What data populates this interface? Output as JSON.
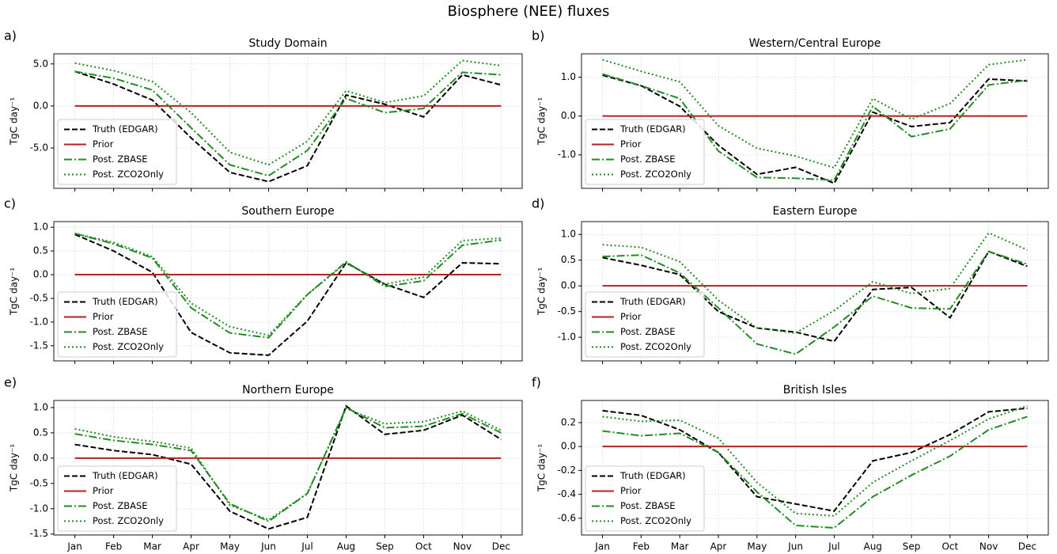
{
  "title": "Biosphere (NEE) fluxes",
  "chart_data": [
    {
      "type": "line",
      "label": "a)",
      "title": "Study Domain",
      "ylabel": "TgC day⁻¹",
      "categories": [
        "Jan",
        "Feb",
        "Mar",
        "Apr",
        "May",
        "Jun",
        "Jul",
        "Aug",
        "Sep",
        "Oct",
        "Nov",
        "Dec"
      ],
      "ylim": [
        -9.8,
        6.2
      ],
      "yticks": [
        {
          "value": -5,
          "label": "-5.0"
        },
        {
          "value": 0,
          "label": "0.0"
        },
        {
          "value": 5,
          "label": "5.0"
        }
      ],
      "grid": true,
      "legend": "lower left",
      "series": [
        {
          "name": "Truth (EDGAR)",
          "color": "#000000",
          "linestyle": "dashed",
          "values": [
            4.1,
            2.6,
            0.7,
            -3.8,
            -7.9,
            -9.0,
            -7.1,
            1.3,
            0.2,
            -1.3,
            3.7,
            2.5
          ]
        },
        {
          "name": "Prior",
          "color": "#b22222",
          "linestyle": "solid",
          "values": [
            0,
            0,
            0,
            0,
            0,
            0,
            0,
            0,
            0,
            0,
            0,
            0
          ]
        },
        {
          "name": "Post. ZBASE",
          "color": "#228b22",
          "linestyle": "dashdot",
          "values": [
            4.1,
            3.3,
            1.9,
            -2.6,
            -7.0,
            -8.3,
            -5.3,
            0.9,
            -0.8,
            -0.3,
            4.0,
            3.7
          ]
        },
        {
          "name": "Post. ZCO2Only",
          "color": "#228b22",
          "linestyle": "dotted",
          "values": [
            5.1,
            4.2,
            2.9,
            -0.8,
            -5.5,
            -7.0,
            -4.2,
            1.8,
            0.4,
            1.2,
            5.4,
            4.8
          ]
        }
      ]
    },
    {
      "type": "line",
      "label": "b)",
      "title": "Western/Central Europe",
      "ylabel": "TgC day⁻¹",
      "categories": [
        "Jan",
        "Feb",
        "Mar",
        "Apr",
        "May",
        "Jun",
        "Jul",
        "Aug",
        "Sep",
        "Oct",
        "Nov",
        "Dec"
      ],
      "ylim": [
        -1.86,
        1.6
      ],
      "yticks": [
        {
          "value": -1,
          "label": "-1.0"
        },
        {
          "value": 0,
          "label": "0.0"
        },
        {
          "value": 1,
          "label": "1.0"
        }
      ],
      "grid": true,
      "legend": "lower left",
      "series": [
        {
          "name": "Truth (EDGAR)",
          "color": "#000000",
          "linestyle": "dashed",
          "values": [
            1.05,
            0.78,
            0.25,
            -0.75,
            -1.5,
            -1.32,
            -1.73,
            0.1,
            -0.27,
            -0.17,
            0.95,
            0.9
          ]
        },
        {
          "name": "Prior",
          "color": "#b22222",
          "linestyle": "solid",
          "values": [
            0,
            0,
            0,
            0,
            0,
            0,
            0,
            0,
            0,
            0,
            0,
            0
          ]
        },
        {
          "name": "Post. ZBASE",
          "color": "#228b22",
          "linestyle": "dashdot",
          "values": [
            1.08,
            0.78,
            0.45,
            -0.9,
            -1.58,
            -1.6,
            -1.65,
            0.25,
            -0.53,
            -0.33,
            0.8,
            0.92
          ]
        },
        {
          "name": "Post. ZCO2Only",
          "color": "#228b22",
          "linestyle": "dotted",
          "values": [
            1.45,
            1.15,
            0.88,
            -0.25,
            -0.83,
            -1.03,
            -1.33,
            0.45,
            -0.08,
            0.32,
            1.32,
            1.45
          ]
        }
      ]
    },
    {
      "type": "line",
      "label": "c)",
      "title": "Southern Europe",
      "ylabel": "TgC day⁻¹",
      "categories": [
        "Jan",
        "Feb",
        "Mar",
        "Apr",
        "May",
        "Jun",
        "Jul",
        "Aug",
        "Sep",
        "Oct",
        "Nov",
        "Dec"
      ],
      "ylim": [
        -1.82,
        1.12
      ],
      "yticks": [
        {
          "value": -1.5,
          "label": "-1.5"
        },
        {
          "value": -1,
          "label": "-1.0"
        },
        {
          "value": -0.5,
          "label": "-0.5"
        },
        {
          "value": 0,
          "label": "0.0"
        },
        {
          "value": 0.5,
          "label": "0.5"
        },
        {
          "value": 1,
          "label": "1.0"
        }
      ],
      "grid": true,
      "legend": "lower left",
      "series": [
        {
          "name": "Truth (EDGAR)",
          "color": "#000000",
          "linestyle": "dashed",
          "values": [
            0.85,
            0.5,
            0.05,
            -1.22,
            -1.65,
            -1.7,
            -0.98,
            0.25,
            -0.2,
            -0.48,
            0.25,
            0.23
          ]
        },
        {
          "name": "Prior",
          "color": "#b22222",
          "linestyle": "solid",
          "values": [
            0,
            0,
            0,
            0,
            0,
            0,
            0,
            0,
            0,
            0,
            0,
            0
          ]
        },
        {
          "name": "Post. ZBASE",
          "color": "#228b22",
          "linestyle": "dashdot",
          "values": [
            0.87,
            0.65,
            0.35,
            -0.7,
            -1.23,
            -1.33,
            -0.42,
            0.27,
            -0.25,
            -0.13,
            0.62,
            0.73
          ]
        },
        {
          "name": "Post. ZCO2Only",
          "color": "#228b22",
          "linestyle": "dotted",
          "values": [
            0.87,
            0.68,
            0.38,
            -0.6,
            -1.1,
            -1.28,
            -0.42,
            0.25,
            -0.2,
            -0.05,
            0.72,
            0.77
          ]
        }
      ]
    },
    {
      "type": "line",
      "label": "d)",
      "title": "Eastern Europe",
      "ylabel": "TgC day⁻¹",
      "categories": [
        "Jan",
        "Feb",
        "Mar",
        "Apr",
        "May",
        "Jun",
        "Jul",
        "Aug",
        "Sep",
        "Oct",
        "Nov",
        "Dec"
      ],
      "ylim": [
        -1.46,
        1.25
      ],
      "yticks": [
        {
          "value": -1,
          "label": "-1.0"
        },
        {
          "value": -0.5,
          "label": "-0.5"
        },
        {
          "value": 0,
          "label": "0.0"
        },
        {
          "value": 0.5,
          "label": "0.5"
        },
        {
          "value": 1,
          "label": "1.0"
        }
      ],
      "grid": true,
      "legend": "lower left",
      "series": [
        {
          "name": "Truth (EDGAR)",
          "color": "#000000",
          "linestyle": "dashed",
          "values": [
            0.55,
            0.4,
            0.22,
            -0.5,
            -0.82,
            -0.9,
            -1.08,
            -0.07,
            -0.03,
            -0.62,
            0.67,
            0.38
          ]
        },
        {
          "name": "Prior",
          "color": "#b22222",
          "linestyle": "solid",
          "values": [
            0,
            0,
            0,
            0,
            0,
            0,
            0,
            0,
            0,
            0,
            0,
            0
          ]
        },
        {
          "name": "Post. ZBASE",
          "color": "#228b22",
          "linestyle": "dashdot",
          "values": [
            0.57,
            0.6,
            0.25,
            -0.43,
            -1.13,
            -1.33,
            -0.8,
            -0.2,
            -0.43,
            -0.45,
            0.67,
            0.42
          ]
        },
        {
          "name": "Post. ZCO2Only",
          "color": "#228b22",
          "linestyle": "dotted",
          "values": [
            0.8,
            0.75,
            0.47,
            -0.28,
            -0.82,
            -0.92,
            -0.48,
            0.08,
            -0.15,
            -0.05,
            1.03,
            0.7
          ]
        }
      ]
    },
    {
      "type": "line",
      "label": "e)",
      "title": "Northern Europe",
      "ylabel": "TgC day⁻¹",
      "categories": [
        "Jan",
        "Feb",
        "Mar",
        "Apr",
        "May",
        "Jun",
        "Jul",
        "Aug",
        "Sep",
        "Oct",
        "Nov",
        "Dec"
      ],
      "ylim": [
        -1.52,
        1.14
      ],
      "yticks": [
        {
          "value": -1.5,
          "label": "-1.5"
        },
        {
          "value": -1,
          "label": "-1.0"
        },
        {
          "value": -0.5,
          "label": "-0.5"
        },
        {
          "value": 0,
          "label": "0.0"
        },
        {
          "value": 0.5,
          "label": "0.5"
        },
        {
          "value": 1,
          "label": "1.0"
        }
      ],
      "grid": true,
      "legend": "lower left",
      "series": [
        {
          "name": "Truth (EDGAR)",
          "color": "#000000",
          "linestyle": "dashed",
          "values": [
            0.27,
            0.15,
            0.07,
            -0.12,
            -1.05,
            -1.4,
            -1.17,
            1.03,
            0.47,
            0.55,
            0.85,
            0.37
          ]
        },
        {
          "name": "Prior",
          "color": "#b22222",
          "linestyle": "solid",
          "values": [
            0,
            0,
            0,
            0,
            0,
            0,
            0,
            0,
            0,
            0,
            0,
            0
          ]
        },
        {
          "name": "Post. ZBASE",
          "color": "#228b22",
          "linestyle": "dashdot",
          "values": [
            0.48,
            0.35,
            0.27,
            0.15,
            -0.9,
            -1.25,
            -0.7,
            1.0,
            0.6,
            0.63,
            0.88,
            0.5
          ]
        },
        {
          "name": "Post. ZCO2Only",
          "color": "#228b22",
          "linestyle": "dotted",
          "values": [
            0.58,
            0.42,
            0.33,
            0.2,
            -0.93,
            -1.22,
            -0.7,
            0.98,
            0.68,
            0.72,
            0.93,
            0.55
          ]
        }
      ]
    },
    {
      "type": "line",
      "label": "f)",
      "title": "British Isles",
      "ylabel": "TgC day⁻¹",
      "categories": [
        "Jan",
        "Feb",
        "Mar",
        "Apr",
        "May",
        "Jun",
        "Jul",
        "Aug",
        "Sep",
        "Oct",
        "Nov",
        "Dec"
      ],
      "ylim": [
        -0.74,
        0.385
      ],
      "yticks": [
        -0.6,
        -0.4,
        -0.2,
        {
          "value": 0,
          "label": "0.0"
        },
        0.2
      ],
      "grid": true,
      "legend": "lower left",
      "series": [
        {
          "name": "Truth (EDGAR)",
          "color": "#000000",
          "linestyle": "dashed",
          "values": [
            0.3,
            0.26,
            0.14,
            -0.05,
            -0.42,
            -0.48,
            -0.54,
            -0.12,
            -0.05,
            0.1,
            0.29,
            0.32
          ]
        },
        {
          "name": "Prior",
          "color": "#b22222",
          "linestyle": "solid",
          "values": [
            0,
            0,
            0,
            0,
            0,
            0,
            0,
            0,
            0,
            0,
            0,
            0
          ]
        },
        {
          "name": "Post. ZBASE",
          "color": "#228b22",
          "linestyle": "dashdot",
          "values": [
            0.13,
            0.09,
            0.11,
            -0.05,
            -0.38,
            -0.66,
            -0.68,
            -0.42,
            -0.24,
            -0.08,
            0.14,
            0.25
          ]
        },
        {
          "name": "Post. ZCO2Only",
          "color": "#228b22",
          "linestyle": "dotted",
          "values": [
            0.25,
            0.21,
            0.22,
            0.07,
            -0.3,
            -0.56,
            -0.58,
            -0.3,
            -0.12,
            0.05,
            0.23,
            0.34
          ]
        }
      ]
    }
  ]
}
